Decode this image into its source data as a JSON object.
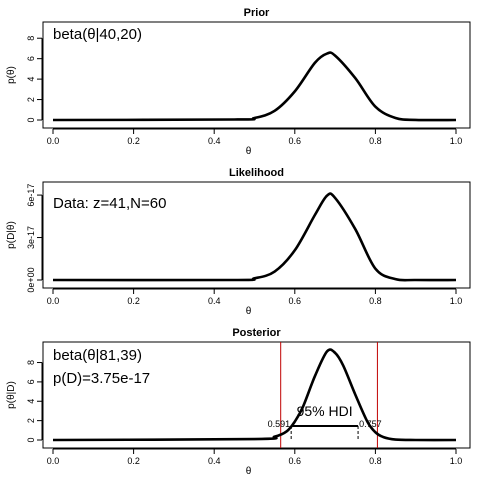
{
  "chart_data": [
    {
      "type": "line",
      "title": "Prior",
      "xlabel": "θ",
      "ylabel": "p(θ)",
      "xlim": [
        0,
        1
      ],
      "ylim": [
        0,
        9
      ],
      "xticks": [
        0.0,
        0.2,
        0.4,
        0.6,
        0.8,
        1.0
      ],
      "xtick_labels": [
        "0.0",
        "0.2",
        "0.4",
        "0.6",
        "0.8",
        "1.0"
      ],
      "yticks": [
        0,
        2,
        4,
        6,
        8
      ],
      "ytick_labels": [
        "0",
        "2",
        "4",
        "6",
        "8"
      ],
      "annotations": [
        "beta(θ|40,20)"
      ],
      "series": [
        {
          "x": [
            0.0,
            0.45,
            0.5,
            0.55,
            0.6,
            0.65,
            0.68,
            0.7,
            0.75,
            0.8,
            0.85,
            0.9,
            1.0
          ],
          "y": [
            0,
            0.05,
            0.2,
            0.9,
            2.8,
            5.6,
            6.5,
            6.3,
            4.1,
            1.3,
            0.2,
            0.01,
            0
          ]
        }
      ]
    },
    {
      "type": "line",
      "title": "Likelihood",
      "xlabel": "θ",
      "ylabel": "p(D|θ)",
      "xlim": [
        0,
        1
      ],
      "ylim": [
        0,
        6.5e-17
      ],
      "xticks": [
        0.0,
        0.2,
        0.4,
        0.6,
        0.8,
        1.0
      ],
      "xtick_labels": [
        "0.0",
        "0.2",
        "0.4",
        "0.6",
        "0.8",
        "1.0"
      ],
      "yticks": [
        0,
        3e-17,
        6e-17
      ],
      "ytick_labels": [
        "0e+00",
        "3e-17",
        "6e-17"
      ],
      "annotations": [
        "Data: z=41,N=60"
      ],
      "series": [
        {
          "x": [
            0.0,
            0.45,
            0.5,
            0.55,
            0.6,
            0.65,
            0.68,
            0.7,
            0.75,
            0.8,
            0.85,
            0.9,
            1.0
          ],
          "y": [
            0,
            0,
            1.2e-18,
            6e-18,
            2.1e-17,
            4.6e-17,
            5.96e-17,
            5.8e-17,
            3.6e-17,
            8e-18,
            6e-19,
            0,
            0
          ]
        }
      ]
    },
    {
      "type": "line",
      "title": "Posterior",
      "xlabel": "θ",
      "ylabel": "p(θ|D)",
      "xlim": [
        0,
        1
      ],
      "ylim": [
        0,
        9.5
      ],
      "xticks": [
        0.0,
        0.2,
        0.4,
        0.6,
        0.8,
        1.0
      ],
      "xtick_labels": [
        "0.0",
        "0.2",
        "0.4",
        "0.6",
        "0.8",
        "1.0"
      ],
      "yticks": [
        0,
        2,
        4,
        6,
        8
      ],
      "ytick_labels": [
        "0",
        "2",
        "4",
        "6",
        "8"
      ],
      "annotations": [
        "beta(θ|81,39)",
        "p(D)=3.75e-17"
      ],
      "vertical_lines": [
        0.565,
        0.805
      ],
      "hdi": {
        "label": "95% HDI",
        "low": 0.591,
        "high": 0.757,
        "low_label": "0.591",
        "high_label": "0.757",
        "height": 1.45
      },
      "series": [
        {
          "x": [
            0.0,
            0.5,
            0.55,
            0.58,
            0.6,
            0.62,
            0.65,
            0.68,
            0.7,
            0.72,
            0.75,
            0.78,
            0.8,
            0.82,
            0.85,
            0.9,
            1.0
          ],
          "y": [
            0,
            0.1,
            0.35,
            0.9,
            1.9,
            3.4,
            6.6,
            9.15,
            9.0,
            7.7,
            4.7,
            1.9,
            0.8,
            0.3,
            0.05,
            0,
            0
          ]
        }
      ]
    }
  ],
  "colors": {
    "curve": "#000000",
    "frame": "#000000",
    "vline": "#c00000"
  }
}
